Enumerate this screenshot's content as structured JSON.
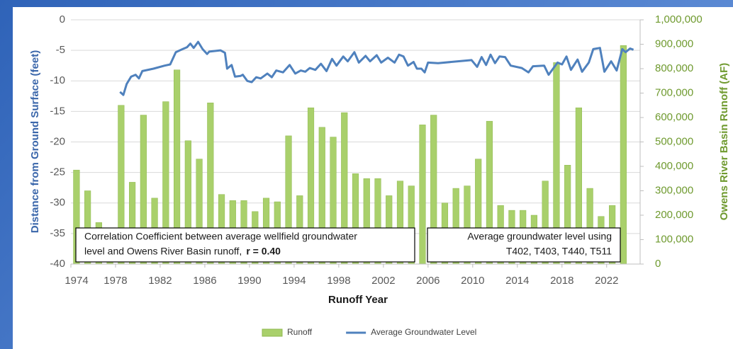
{
  "chart_data": {
    "type": "combo",
    "x_label": "Runoff Year",
    "y_label": "Distance from Ground Surface (feet)",
    "y2_label": "Owens River Basin Runoff (AF)",
    "xlim": [
      1974,
      2025
    ],
    "xticks": [
      1974,
      1978,
      1982,
      1986,
      1990,
      1994,
      1998,
      2002,
      2006,
      2010,
      2014,
      2018,
      2022
    ],
    "ylim": [
      -40,
      0
    ],
    "yticks": [
      0,
      -5,
      -10,
      -15,
      -20,
      -25,
      -30,
      -35,
      -40
    ],
    "y2lim": [
      0,
      1000000
    ],
    "y2ticks": [
      {
        "value": 1000000,
        "label": "1,000,000"
      },
      {
        "value": 900000,
        "label": "900,000"
      },
      {
        "value": 800000,
        "label": "800,000"
      },
      {
        "value": 700000,
        "label": "700,000"
      },
      {
        "value": 600000,
        "label": "600,000"
      },
      {
        "value": 500000,
        "label": "500,000"
      },
      {
        "value": 400000,
        "label": "400,000"
      },
      {
        "value": 300000,
        "label": "300,000"
      },
      {
        "value": 200000,
        "label": "200,000"
      },
      {
        "value": 100000,
        "label": "100,000"
      },
      0
    ],
    "grid": true,
    "legend": "bottom",
    "annotations": [
      {
        "lines": [
          "Correlation Coefficient between average wellfield groundwater",
          "level and Owens River Basin runoff, "
        ],
        "bold": "r = 0.40"
      },
      {
        "lines": [
          "Average groundwater level using",
          "T402, T403, T440, T511"
        ]
      }
    ],
    "series": [
      {
        "name": "Runoff",
        "type": "bar",
        "axis": "y2",
        "color": "#a9d06b",
        "x": [
          1974,
          1975,
          1976,
          1977,
          1978,
          1979,
          1980,
          1981,
          1982,
          1983,
          1984,
          1985,
          1986,
          1987,
          1988,
          1989,
          1990,
          1991,
          1992,
          1993,
          1994,
          1995,
          1996,
          1997,
          1998,
          1999,
          2000,
          2001,
          2002,
          2003,
          2004,
          2005,
          2006,
          2007,
          2008,
          2009,
          2010,
          2011,
          2012,
          2013,
          2014,
          2015,
          2016,
          2017,
          2018,
          2019,
          2020,
          2021,
          2022,
          2023
        ],
        "values": [
          385000,
          300000,
          170000,
          140000,
          650000,
          335000,
          610000,
          270000,
          665000,
          795000,
          505000,
          430000,
          660000,
          285000,
          260000,
          260000,
          215000,
          270000,
          255000,
          525000,
          280000,
          640000,
          560000,
          520000,
          620000,
          370000,
          350000,
          350000,
          280000,
          340000,
          320000,
          570000,
          610000,
          250000,
          310000,
          320000,
          430000,
          585000,
          240000,
          220000,
          220000,
          200000,
          340000,
          825000,
          405000,
          640000,
          310000,
          195000,
          240000,
          895000
        ]
      },
      {
        "name": "Average Groundwater Level",
        "type": "line",
        "axis": "y",
        "color": "#4f81bd",
        "x": [
          1978.4,
          1978.7,
          1979,
          1979.4,
          1979.8,
          1980.1,
          1980.4,
          1981.4,
          1982.4,
          1982.9,
          1983.4,
          1984,
          1984.4,
          1984.7,
          1985,
          1985.4,
          1985.8,
          1986.2,
          1986.4,
          1987.4,
          1987.8,
          1988,
          1988.4,
          1988.7,
          1989.2,
          1989.4,
          1989.8,
          1990.2,
          1990.6,
          1991,
          1991.6,
          1992,
          1992.4,
          1993,
          1993.6,
          1994.1,
          1994.6,
          1995,
          1995.4,
          1995.9,
          1996.4,
          1996.9,
          1997.4,
          1997.8,
          1998.4,
          1998.8,
          1999.4,
          1999.8,
          2000.4,
          2000.8,
          2001.4,
          2001.8,
          2002.4,
          2003,
          2003.4,
          2003.8,
          2004.2,
          2004.7,
          2005,
          2005.4,
          2005.7,
          2006,
          2006.9,
          2009.9,
          2010.4,
          2010.8,
          2011.2,
          2011.6,
          2012,
          2012.4,
          2012.9,
          2013.4,
          2014.4,
          2015,
          2015.4,
          2016.4,
          2016.8,
          2017.6,
          2018,
          2018.4,
          2018.8,
          2019.4,
          2019.8,
          2020.4,
          2020.8,
          2021.4,
          2021.8,
          2022.4,
          2022.9,
          2023.4,
          2023.7,
          2024.1,
          2024.4
        ],
        "values": [
          -11.8,
          -12.3,
          -10.5,
          -9.3,
          -9.0,
          -9.6,
          -8.4,
          -8.0,
          -7.5,
          -7.3,
          -5.3,
          -4.8,
          -4.5,
          -3.9,
          -4.6,
          -3.6,
          -4.8,
          -5.6,
          -5.2,
          -5.0,
          -5.4,
          -8.0,
          -7.4,
          -9.3,
          -9.2,
          -9.0,
          -10.0,
          -10.2,
          -9.4,
          -9.6,
          -8.8,
          -9.4,
          -8.3,
          -8.6,
          -7.4,
          -8.8,
          -8.3,
          -8.5,
          -7.9,
          -8.2,
          -7.2,
          -8.4,
          -6.4,
          -7.5,
          -6.0,
          -6.8,
          -5.3,
          -7.0,
          -5.9,
          -6.8,
          -5.8,
          -7.0,
          -6.2,
          -7.0,
          -5.7,
          -6.0,
          -7.5,
          -6.9,
          -8.0,
          -8.0,
          -8.6,
          -7.0,
          -7.1,
          -6.6,
          -7.7,
          -6.1,
          -7.4,
          -5.7,
          -7.1,
          -6.0,
          -6.1,
          -7.5,
          -7.9,
          -8.6,
          -7.6,
          -7.5,
          -9.0,
          -7.0,
          -7.3,
          -6.0,
          -8.2,
          -6.5,
          -8.5,
          -7.0,
          -4.8,
          -4.6,
          -8.5,
          -6.8,
          -8.3,
          -4.8,
          -5.3,
          -4.7,
          -4.9
        ]
      }
    ]
  }
}
